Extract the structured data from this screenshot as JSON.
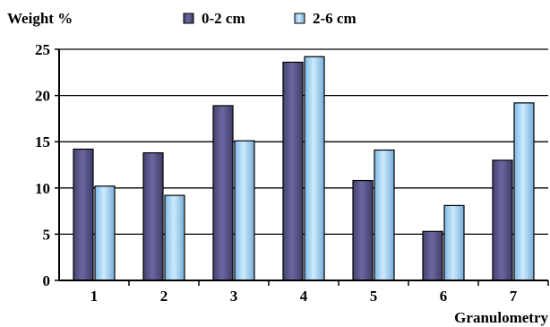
{
  "chart_data": {
    "type": "bar",
    "ylabel": "Weight %",
    "xlabel": "Granulometry",
    "categories": [
      "1",
      "2",
      "3",
      "4",
      "5",
      "6",
      "7"
    ],
    "yticks": [
      "0",
      "5",
      "10",
      "15",
      "20",
      "25"
    ],
    "ylim": [
      0,
      25
    ],
    "grid": true,
    "legend_position": "top",
    "series": [
      {
        "name": "0-2 cm",
        "color": "#5c5a8e",
        "values": [
          14.2,
          13.8,
          18.9,
          23.6,
          10.8,
          5.3,
          13.0
        ]
      },
      {
        "name": "2-6 cm",
        "color": "#9fd0f2",
        "values": [
          10.2,
          9.2,
          15.1,
          24.2,
          14.1,
          8.1,
          19.2
        ]
      }
    ]
  }
}
